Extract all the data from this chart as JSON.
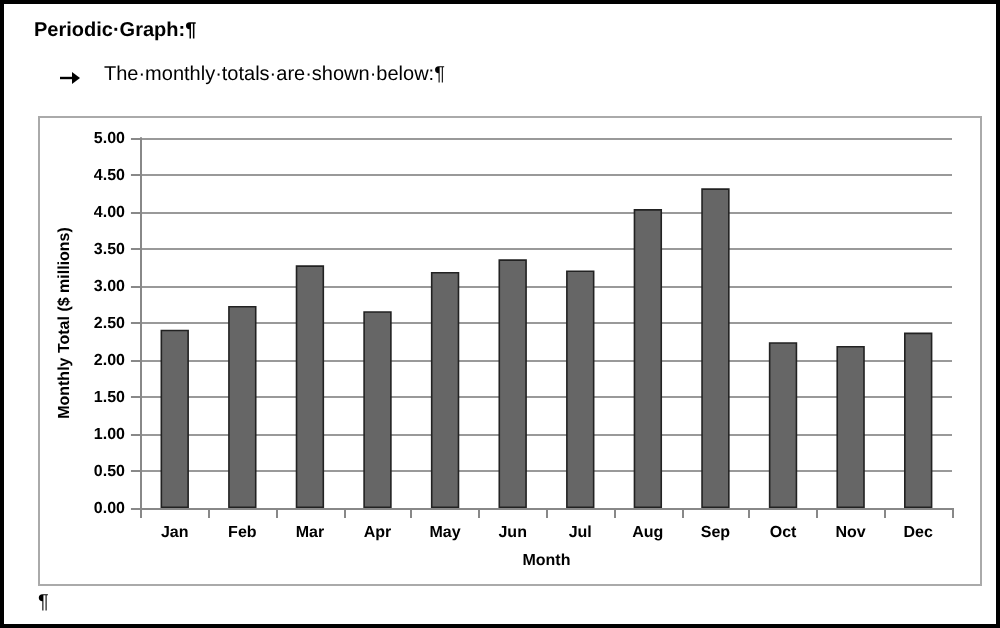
{
  "chart_data": {
    "type": "bar",
    "title": "Periodic·Graph:¶",
    "subtitle": "The·monthly·totals·are·shown·below:¶",
    "xlabel": "Month",
    "ylabel": "Monthly Total ($ millions)",
    "categories": [
      "Jan",
      "Feb",
      "Mar",
      "Apr",
      "May",
      "Jun",
      "Jul",
      "Aug",
      "Sep",
      "Oct",
      "Nov",
      "Dec"
    ],
    "values": [
      2.41,
      2.73,
      3.28,
      2.66,
      3.19,
      3.36,
      3.21,
      4.04,
      4.32,
      2.24,
      2.19,
      2.37
    ],
    "color": "#666666",
    "ylim": [
      0,
      5
    ],
    "yticks": [
      {
        "value": 0,
        "label": "0.00"
      },
      {
        "value": 0.5,
        "label": "0.50"
      },
      {
        "value": 1,
        "label": "1.00"
      },
      {
        "value": 1.5,
        "label": "1.50"
      },
      {
        "value": 2,
        "label": "2.00"
      },
      {
        "value": 2.5,
        "label": "2.50"
      },
      {
        "value": 3,
        "label": "3.00"
      },
      {
        "value": 3.5,
        "label": "3.50"
      },
      {
        "value": 4,
        "label": "4.00"
      },
      {
        "value": 4.5,
        "label": "4.50"
      },
      {
        "value": 5,
        "label": "5.00"
      }
    ],
    "grid": "y",
    "annotations": [
      "¶"
    ]
  }
}
